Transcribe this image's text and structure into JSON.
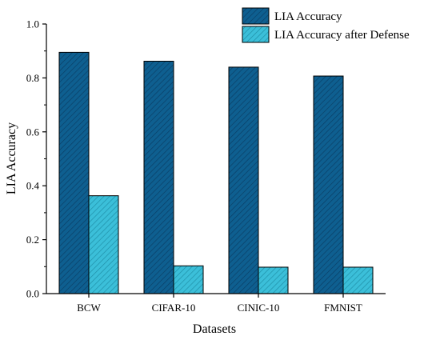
{
  "chart_data": {
    "type": "bar",
    "categories": [
      "BCW",
      "CIFAR-10",
      "CINIC-10",
      "FMNIST"
    ],
    "series": [
      {
        "name": "LIA Accuracy",
        "values": [
          0.895,
          0.862,
          0.84,
          0.807
        ],
        "color": "#0e5f90",
        "hatch_color": "#0a3f66"
      },
      {
        "name": "LIA Accuracy after Defense",
        "values": [
          0.363,
          0.103,
          0.098,
          0.098
        ],
        "color": "#3bbfd9",
        "hatch_color": "#1f8fa8"
      }
    ],
    "xlabel": "Datasets",
    "ylabel": "LIA Accuracy",
    "ylim": [
      0.0,
      1.0
    ],
    "yticks": [
      "0.0",
      "0.2",
      "0.4",
      "0.6",
      "0.8",
      "1.0"
    ],
    "legend_position": "top-right",
    "grid": false
  }
}
